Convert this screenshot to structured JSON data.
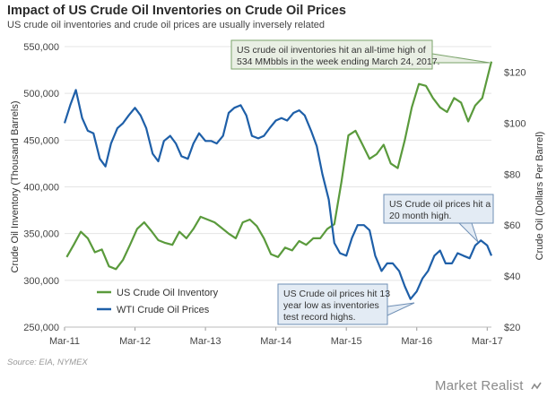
{
  "title": "Impact of US Crude Oil Inventories on Crude Oil Prices",
  "subtitle": "US crude oil inventories and crude oil prices are usually inversely related",
  "source": "Source: EIA, NYMEX",
  "brand": "Market Realist",
  "colors": {
    "inventory": "#5a9a3c",
    "price": "#1e5fa8",
    "callout_fill": "#e9efe4",
    "callout_border": "#7aa36a",
    "callout_blue_fill": "#e3ebf4",
    "callout_blue_border": "#6f8fb5"
  },
  "chart_data": {
    "type": "line",
    "title": "Impact of US Crude Oil Inventories on Crude Oil Prices",
    "ylabel_left": "Crude Oil Inventory  (Thousand  Barrels)",
    "ylabel_right": "Crude Oil (Dollars Per Barrel)",
    "ylim_left": [
      250000,
      550000
    ],
    "ylim_right": [
      20,
      130
    ],
    "yticks_left": [
      "250,000",
      "300,000",
      "350,000",
      "400,000",
      "450,000",
      "500,000",
      "550,000"
    ],
    "yticks_right": [
      "$20",
      "$40",
      "$60",
      "$80",
      "$100",
      "$120"
    ],
    "x_ticks": [
      "Mar-11",
      "Mar-12",
      "Mar-13",
      "Mar-14",
      "Mar-15",
      "Mar-16",
      "Mar-17"
    ],
    "grid": true,
    "legend": "bottom-left",
    "series": [
      {
        "name": "US Crude Oil Inventory",
        "axis": "left",
        "x": [
          2011.2,
          2011.3,
          2011.4,
          2011.5,
          2011.6,
          2011.7,
          2011.8,
          2011.9,
          2012.0,
          2012.1,
          2012.2,
          2012.3,
          2012.4,
          2012.5,
          2012.6,
          2012.7,
          2012.8,
          2012.9,
          2013.0,
          2013.1,
          2013.2,
          2013.3,
          2013.4,
          2013.5,
          2013.6,
          2013.7,
          2013.8,
          2013.9,
          2014.0,
          2014.1,
          2014.2,
          2014.3,
          2014.4,
          2014.5,
          2014.6,
          2014.7,
          2014.8,
          2014.9,
          2015.0,
          2015.1,
          2015.2,
          2015.3,
          2015.4,
          2015.5,
          2015.6,
          2015.7,
          2015.8,
          2015.9,
          2016.0,
          2016.1,
          2016.2,
          2016.3,
          2016.4,
          2016.5,
          2016.6,
          2016.7,
          2016.8,
          2016.9,
          2017.0,
          2017.1,
          2017.2,
          2017.23
        ],
        "values": [
          325000,
          338000,
          352000,
          345000,
          330000,
          333000,
          315000,
          312000,
          322000,
          338000,
          355000,
          362000,
          353000,
          343000,
          340000,
          338000,
          352000,
          345000,
          355000,
          368000,
          365000,
          362000,
          356000,
          350000,
          345000,
          362000,
          365000,
          358000,
          345000,
          328000,
          325000,
          335000,
          332000,
          342000,
          338000,
          345000,
          345000,
          355000,
          360000,
          405000,
          455000,
          460000,
          445000,
          430000,
          435000,
          445000,
          425000,
          420000,
          450000,
          485000,
          510000,
          508000,
          495000,
          485000,
          480000,
          495000,
          490000,
          470000,
          487000,
          495000,
          525000,
          534000
        ]
      },
      {
        "name": "WTI Crude Oil Prices",
        "axis": "right",
        "x": [
          2011.17,
          2011.25,
          2011.33,
          2011.42,
          2011.5,
          2011.58,
          2011.67,
          2011.75,
          2011.83,
          2011.92,
          2012.0,
          2012.08,
          2012.17,
          2012.25,
          2012.33,
          2012.42,
          2012.5,
          2012.58,
          2012.67,
          2012.75,
          2012.83,
          2012.92,
          2013.0,
          2013.08,
          2013.17,
          2013.25,
          2013.33,
          2013.42,
          2013.5,
          2013.58,
          2013.67,
          2013.75,
          2013.83,
          2013.92,
          2014.0,
          2014.08,
          2014.17,
          2014.25,
          2014.33,
          2014.42,
          2014.5,
          2014.58,
          2014.67,
          2014.75,
          2014.83,
          2014.92,
          2015.0,
          2015.08,
          2015.17,
          2015.25,
          2015.33,
          2015.42,
          2015.5,
          2015.58,
          2015.67,
          2015.75,
          2015.83,
          2015.92,
          2016.0,
          2016.08,
          2016.17,
          2016.25,
          2016.33,
          2016.42,
          2016.5,
          2016.58,
          2016.67,
          2016.75,
          2016.83,
          2016.92,
          2017.0,
          2017.08,
          2017.17,
          2017.23
        ],
        "values": [
          100,
          107,
          113,
          102,
          97,
          96,
          86,
          83,
          92,
          98,
          100,
          103,
          106,
          103,
          98,
          88,
          85,
          93,
          95,
          92,
          87,
          86,
          92,
          96,
          93,
          93,
          92,
          95,
          104,
          106,
          107,
          103,
          95,
          94,
          95,
          98,
          101,
          102,
          101,
          104,
          105,
          103,
          97,
          91,
          80,
          70,
          53,
          49,
          48,
          55,
          60,
          60,
          58,
          48,
          42,
          45,
          45,
          42,
          36,
          31,
          34,
          39,
          42,
          48,
          50,
          45,
          45,
          49,
          48,
          47,
          52,
          54,
          52,
          48
        ]
      }
    ]
  },
  "callouts": [
    {
      "id": "inventory-high",
      "line1": "US crude oil inventories hit an all-time high of",
      "line2": "534 MMbbls in the week ending March 24, 2017."
    },
    {
      "id": "price-high",
      "line1": "US Crude oil prices hit a",
      "line2": "20 month high."
    },
    {
      "id": "price-low",
      "line1": "US Crude oil prices hit 13",
      "line2": "year low as inventories",
      "line3": "test record highs."
    }
  ]
}
